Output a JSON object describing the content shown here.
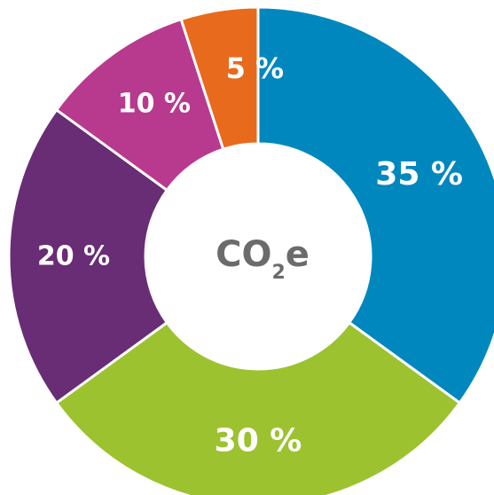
{
  "chart_data": {
    "type": "pie",
    "title": "",
    "center_label": {
      "main": "CO",
      "subscript": "2",
      "suffix": "e"
    },
    "slices": [
      {
        "label": "35 %",
        "value": 35,
        "color": "#0088be"
      },
      {
        "label": "30 %",
        "value": 30,
        "color": "#9dc230"
      },
      {
        "label": "20 %",
        "value": 20,
        "color": "#682d75"
      },
      {
        "label": "10 %",
        "value": 10,
        "color": "#b83a8f"
      },
      {
        "label": "5 %",
        "value": 5,
        "color": "#e86a1c"
      }
    ]
  }
}
